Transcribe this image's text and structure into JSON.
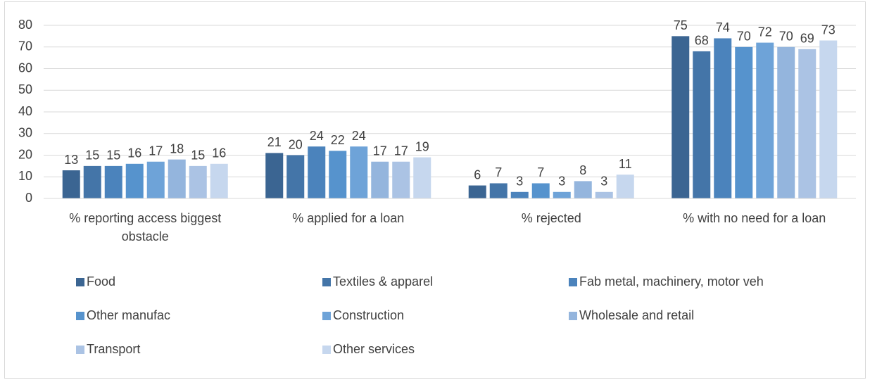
{
  "chart_data": {
    "type": "bar",
    "categories": [
      "% reporting access biggest obstacle",
      "% applied for a loan",
      "% rejected",
      "% with no need for a loan"
    ],
    "series": [
      {
        "name": "Food",
        "color": "#3b6592",
        "values": [
          13,
          21,
          6,
          75
        ]
      },
      {
        "name": "Textiles & apparel",
        "color": "#4475a8",
        "values": [
          15,
          20,
          7,
          68
        ]
      },
      {
        "name": "Fab metal, machinery, motor veh",
        "color": "#4b83bc",
        "values": [
          15,
          24,
          3,
          74
        ]
      },
      {
        "name": "Other manufac",
        "color": "#5693cd",
        "values": [
          16,
          22,
          7,
          70
        ]
      },
      {
        "name": "Construction",
        "color": "#6ea3d8",
        "values": [
          17,
          24,
          3,
          72
        ]
      },
      {
        "name": "Wholesale and retail",
        "color": "#94b5dd",
        "values": [
          18,
          17,
          8,
          70
        ]
      },
      {
        "name": "Transport",
        "color": "#abc3e4",
        "values": [
          15,
          17,
          3,
          69
        ]
      },
      {
        "name": "Other services",
        "color": "#c6d7ee",
        "values": [
          16,
          19,
          11,
          73
        ]
      }
    ],
    "ylim": [
      0,
      80
    ],
    "yticks": [
      0,
      10,
      20,
      30,
      40,
      50,
      60,
      70,
      80
    ],
    "grid": true,
    "legend": "bottom"
  }
}
